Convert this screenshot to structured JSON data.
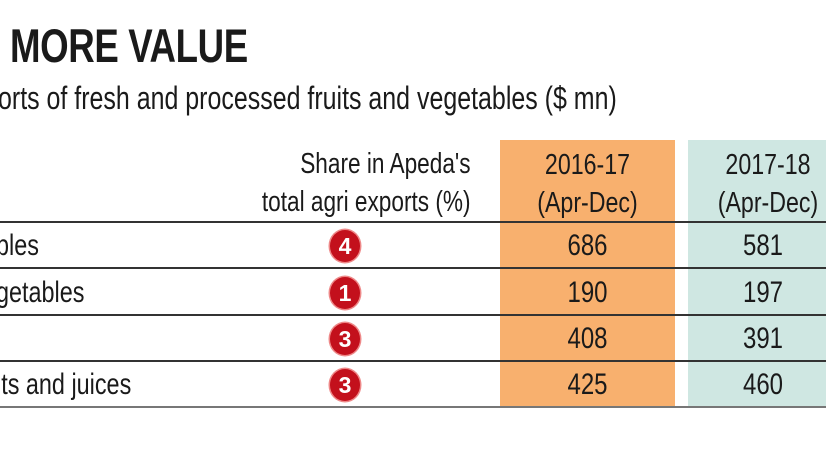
{
  "colors": {
    "col_2016": "#f8b06e",
    "col_2017": "#cfe7e2",
    "badge": "#c3101c"
  },
  "chart_data": {
    "type": "table",
    "title": "MORE VALUE",
    "subtitle": "orts of fresh and processed fruits and vegetables ($ mn)",
    "columns": [
      "Share in Apeda's total agri exports (%)",
      "2016-17 (Apr-Dec)",
      "2017-18 (Apr-Dec)"
    ],
    "header": {
      "share_line1": "Share in Apeda's",
      "share_line2": "total agri exports (%)",
      "y1_line1": "2016-17",
      "y1_line2": "(Apr-Dec)",
      "y2_line1": "2017-18",
      "y2_line2": "(Apr-Dec)"
    },
    "rows": [
      {
        "label": "bles",
        "share": "4",
        "v2016": "686",
        "v2017": "581"
      },
      {
        "label": "getables",
        "share": "1",
        "v2016": "190",
        "v2017": "197"
      },
      {
        "label": "",
        "share": "3",
        "v2016": "408",
        "v2017": "391"
      },
      {
        "label": "its and juices",
        "share": "3",
        "v2016": "425",
        "v2017": "460"
      }
    ]
  }
}
